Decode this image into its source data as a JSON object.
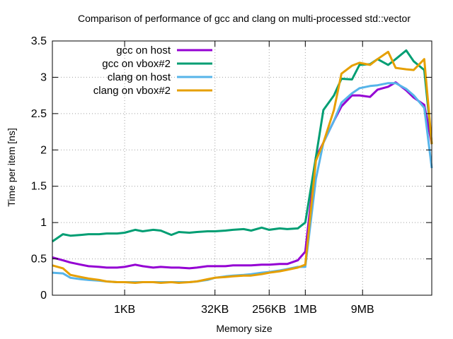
{
  "chart_data": {
    "type": "line",
    "title": "Comparison of performance of gcc and clang on multi-processed std::vector",
    "xlabel": "Memory size",
    "ylabel": "Time per item [ns]",
    "ylim": [
      0,
      3.5
    ],
    "yticks": [
      "0",
      "0.5",
      "1",
      "1.5",
      "2",
      "2.5",
      "3",
      "3.5"
    ],
    "x_scale": "log2",
    "x_unit": "bytes",
    "xlim": [
      64,
      134217728
    ],
    "xticks": [
      {
        "label": "1KB",
        "value": 1024
      },
      {
        "label": "32KB",
        "value": 32768
      },
      {
        "label": "256KB",
        "value": 262144
      },
      {
        "label": "1MB",
        "value": 1048576
      },
      {
        "label": "9MB",
        "value": 9437184
      }
    ],
    "grid": true,
    "legend_position": "top-left",
    "series": [
      {
        "name": "gcc on host",
        "color": "#9400d3",
        "points": [
          [
            64,
            0.52
          ],
          [
            96,
            0.48
          ],
          [
            128,
            0.45
          ],
          [
            192,
            0.42
          ],
          [
            256,
            0.4
          ],
          [
            384,
            0.39
          ],
          [
            512,
            0.38
          ],
          [
            768,
            0.38
          ],
          [
            1024,
            0.39
          ],
          [
            1536,
            0.42
          ],
          [
            2048,
            0.4
          ],
          [
            3072,
            0.38
          ],
          [
            4096,
            0.39
          ],
          [
            6144,
            0.38
          ],
          [
            8192,
            0.38
          ],
          [
            12288,
            0.37
          ],
          [
            16384,
            0.38
          ],
          [
            24576,
            0.4
          ],
          [
            32768,
            0.4
          ],
          [
            49152,
            0.4
          ],
          [
            65536,
            0.41
          ],
          [
            98304,
            0.41
          ],
          [
            131072,
            0.41
          ],
          [
            196608,
            0.42
          ],
          [
            262144,
            0.42
          ],
          [
            393216,
            0.43
          ],
          [
            524288,
            0.43
          ],
          [
            786432,
            0.48
          ],
          [
            1048576,
            0.6
          ],
          [
            1572864,
            1.9
          ],
          [
            2097152,
            2.1
          ],
          [
            3145728,
            2.4
          ],
          [
            4194304,
            2.6
          ],
          [
            6291456,
            2.75
          ],
          [
            8388608,
            2.75
          ],
          [
            12582912,
            2.73
          ],
          [
            16777216,
            2.83
          ],
          [
            25165824,
            2.87
          ],
          [
            33554432,
            2.93
          ],
          [
            50331648,
            2.82
          ],
          [
            67108864,
            2.72
          ],
          [
            100663296,
            2.62
          ],
          [
            134217728,
            2.08
          ]
        ]
      },
      {
        "name": "gcc on vbox#2",
        "color": "#009e73",
        "points": [
          [
            64,
            0.74
          ],
          [
            96,
            0.84
          ],
          [
            128,
            0.82
          ],
          [
            192,
            0.83
          ],
          [
            256,
            0.84
          ],
          [
            384,
            0.84
          ],
          [
            512,
            0.85
          ],
          [
            768,
            0.85
          ],
          [
            1024,
            0.86
          ],
          [
            1536,
            0.9
          ],
          [
            2048,
            0.88
          ],
          [
            3072,
            0.9
          ],
          [
            4096,
            0.89
          ],
          [
            6144,
            0.83
          ],
          [
            8192,
            0.87
          ],
          [
            12288,
            0.86
          ],
          [
            16384,
            0.87
          ],
          [
            24576,
            0.88
          ],
          [
            32768,
            0.88
          ],
          [
            49152,
            0.89
          ],
          [
            65536,
            0.9
          ],
          [
            98304,
            0.91
          ],
          [
            131072,
            0.89
          ],
          [
            196608,
            0.93
          ],
          [
            262144,
            0.9
          ],
          [
            393216,
            0.92
          ],
          [
            524288,
            0.91
          ],
          [
            786432,
            0.92
          ],
          [
            1048576,
            1.0
          ],
          [
            1572864,
            1.9
          ],
          [
            2097152,
            2.55
          ],
          [
            3145728,
            2.75
          ],
          [
            4194304,
            2.98
          ],
          [
            6291456,
            2.97
          ],
          [
            8388608,
            3.17
          ],
          [
            12582912,
            3.18
          ],
          [
            16777216,
            3.25
          ],
          [
            25165824,
            3.17
          ],
          [
            33554432,
            3.25
          ],
          [
            50331648,
            3.37
          ],
          [
            67108864,
            3.22
          ],
          [
            100663296,
            3.1
          ],
          [
            134217728,
            2.08
          ]
        ]
      },
      {
        "name": "clang on host",
        "color": "#56b4e9",
        "points": [
          [
            64,
            0.31
          ],
          [
            96,
            0.3
          ],
          [
            128,
            0.24
          ],
          [
            192,
            0.22
          ],
          [
            256,
            0.21
          ],
          [
            384,
            0.2
          ],
          [
            512,
            0.19
          ],
          [
            768,
            0.18
          ],
          [
            1024,
            0.18
          ],
          [
            1536,
            0.18
          ],
          [
            2048,
            0.18
          ],
          [
            3072,
            0.18
          ],
          [
            4096,
            0.18
          ],
          [
            6144,
            0.18
          ],
          [
            8192,
            0.18
          ],
          [
            12288,
            0.18
          ],
          [
            16384,
            0.19
          ],
          [
            24576,
            0.21
          ],
          [
            32768,
            0.24
          ],
          [
            49152,
            0.26
          ],
          [
            65536,
            0.27
          ],
          [
            98304,
            0.28
          ],
          [
            131072,
            0.29
          ],
          [
            196608,
            0.31
          ],
          [
            262144,
            0.32
          ],
          [
            393216,
            0.34
          ],
          [
            524288,
            0.36
          ],
          [
            786432,
            0.39
          ],
          [
            1048576,
            0.39
          ],
          [
            1572864,
            1.6
          ],
          [
            2097152,
            2.1
          ],
          [
            3145728,
            2.4
          ],
          [
            4194304,
            2.65
          ],
          [
            6291456,
            2.78
          ],
          [
            8388608,
            2.85
          ],
          [
            12582912,
            2.88
          ],
          [
            16777216,
            2.89
          ],
          [
            25165824,
            2.92
          ],
          [
            33554432,
            2.92
          ],
          [
            50331648,
            2.84
          ],
          [
            67108864,
            2.75
          ],
          [
            100663296,
            2.58
          ],
          [
            134217728,
            1.75
          ]
        ]
      },
      {
        "name": "clang on vbox#2",
        "color": "#e69f00",
        "points": [
          [
            64,
            0.41
          ],
          [
            96,
            0.37
          ],
          [
            128,
            0.28
          ],
          [
            192,
            0.25
          ],
          [
            256,
            0.23
          ],
          [
            384,
            0.21
          ],
          [
            512,
            0.19
          ],
          [
            768,
            0.18
          ],
          [
            1024,
            0.18
          ],
          [
            1536,
            0.17
          ],
          [
            2048,
            0.18
          ],
          [
            3072,
            0.18
          ],
          [
            4096,
            0.17
          ],
          [
            6144,
            0.18
          ],
          [
            8192,
            0.17
          ],
          [
            12288,
            0.18
          ],
          [
            16384,
            0.19
          ],
          [
            24576,
            0.22
          ],
          [
            32768,
            0.24
          ],
          [
            49152,
            0.25
          ],
          [
            65536,
            0.26
          ],
          [
            98304,
            0.27
          ],
          [
            131072,
            0.27
          ],
          [
            196608,
            0.29
          ],
          [
            262144,
            0.31
          ],
          [
            393216,
            0.33
          ],
          [
            524288,
            0.35
          ],
          [
            786432,
            0.38
          ],
          [
            1048576,
            0.42
          ],
          [
            1572864,
            1.85
          ],
          [
            2097152,
            2.1
          ],
          [
            3145728,
            2.55
          ],
          [
            4194304,
            3.05
          ],
          [
            6291456,
            3.16
          ],
          [
            8388608,
            3.2
          ],
          [
            12582912,
            3.17
          ],
          [
            16777216,
            3.25
          ],
          [
            25165824,
            3.35
          ],
          [
            33554432,
            3.13
          ],
          [
            50331648,
            3.11
          ],
          [
            67108864,
            3.1
          ],
          [
            100663296,
            3.25
          ],
          [
            134217728,
            2.08
          ]
        ]
      }
    ]
  }
}
